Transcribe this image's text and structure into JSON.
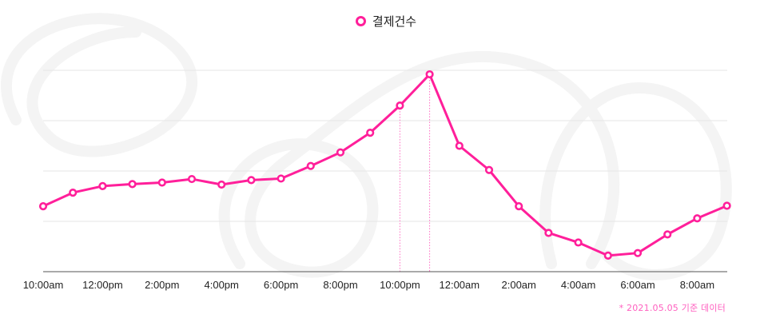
{
  "chart_data": {
    "type": "line",
    "categories": [
      "10:00am",
      "11:00am",
      "12:00pm",
      "1:00pm",
      "2:00pm",
      "3:00pm",
      "4:00pm",
      "5:00pm",
      "6:00pm",
      "7:00pm",
      "8:00pm",
      "9:00pm",
      "10:00pm",
      "11:00pm",
      "12:00am",
      "1:00am",
      "2:00am",
      "3:00am",
      "4:00am",
      "5:00am",
      "6:00am",
      "7:00am",
      "8:00am",
      "9:00am"
    ],
    "tick_labels": [
      "10:00am",
      "12:00pm",
      "2:00pm",
      "4:00pm",
      "6:00pm",
      "8:00pm",
      "10:00pm",
      "12:00am",
      "2:00am",
      "4:00am",
      "6:00am",
      "8:00am"
    ],
    "series": [
      {
        "name": "결제건수",
        "color": "#ff1f9a",
        "values": [
          1.3,
          1.57,
          1.7,
          1.74,
          1.77,
          1.84,
          1.73,
          1.82,
          1.85,
          2.1,
          2.37,
          2.76,
          3.3,
          3.92,
          2.5,
          2.02,
          1.3,
          0.77,
          0.58,
          0.32,
          0.37,
          0.74,
          1.06,
          1.31
        ]
      }
    ],
    "ylim": [
      0,
      4
    ],
    "y_gridlines": [
      1,
      2,
      3,
      4
    ],
    "highlight_categories": [
      "10:00pm",
      "11:00pm"
    ],
    "grid": true,
    "legend_position": "top-center",
    "title": "",
    "xlabel": "",
    "ylabel": ""
  },
  "footnote": "* 2021.05.05 기준 데이터"
}
